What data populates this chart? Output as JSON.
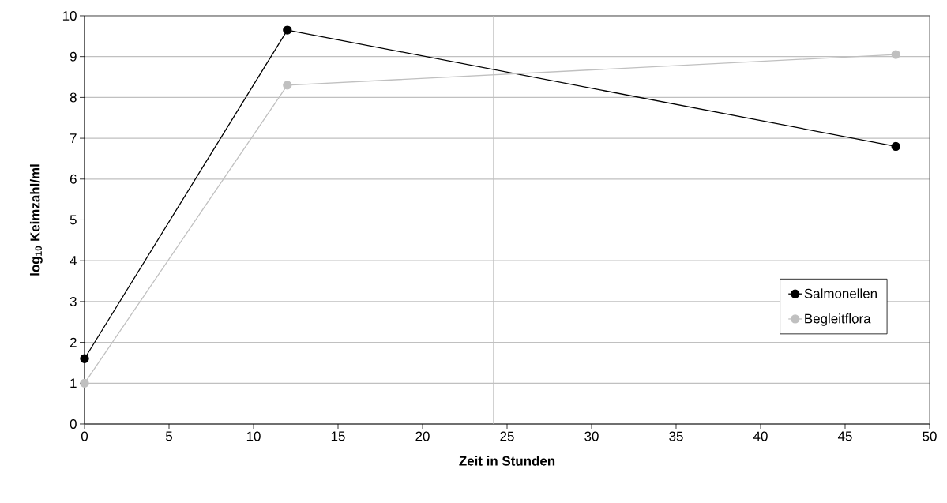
{
  "chart_data": {
    "type": "line",
    "xlabel": "Zeit in Stunden",
    "ylabel": "log$_{10}$ Keimzahl/ml",
    "series": [
      {
        "name": "Salmonellen",
        "color": "#000000",
        "x": [
          0,
          12,
          48
        ],
        "values": [
          1.6,
          9.65,
          6.8
        ]
      },
      {
        "name": "Begleitflora",
        "color": "#c0c0c0",
        "x": [
          0,
          12,
          48
        ],
        "values": [
          1.0,
          8.3,
          9.05
        ]
      }
    ],
    "xlim": [
      0,
      50
    ],
    "ylim": [
      0,
      10
    ],
    "xticks": [
      0,
      5,
      10,
      15,
      20,
      25,
      30,
      35,
      40,
      45,
      50
    ],
    "yticks": [
      0,
      1,
      2,
      3,
      4,
      5,
      6,
      7,
      8,
      9,
      10
    ],
    "ref_lines": [
      {
        "axis": "x",
        "value": 24.2,
        "color": "#c0c0c0"
      }
    ],
    "grid": "y",
    "legend": "right",
    "marker": "circle",
    "line_style": "solid"
  }
}
